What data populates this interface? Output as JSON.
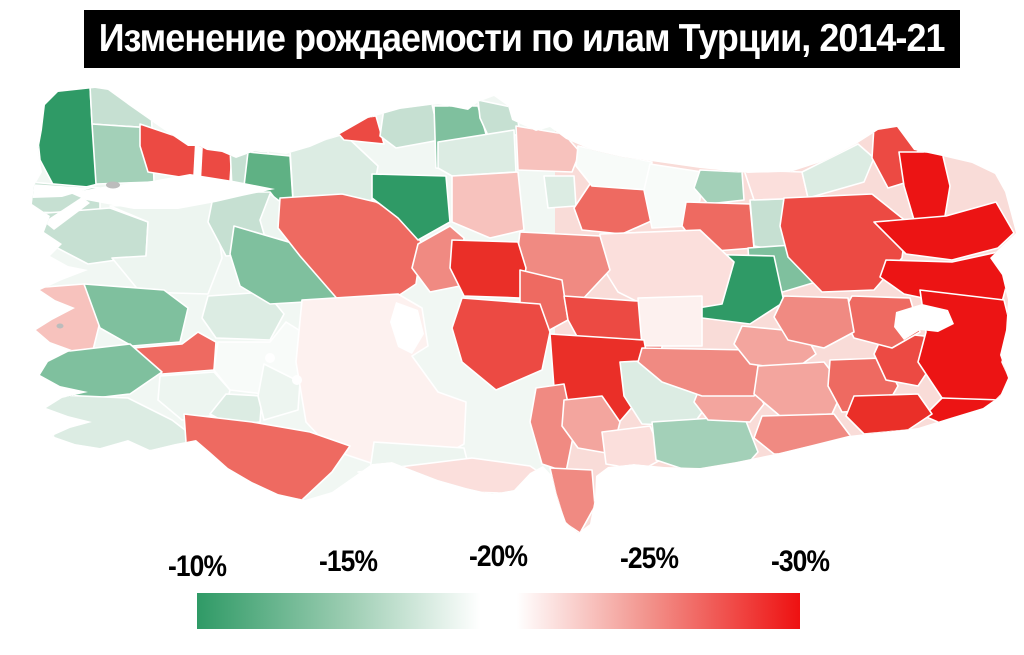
{
  "title": {
    "text": "Изменение рождаемости по илам Турции, 2014-21",
    "background": "#000000",
    "color": "#ffffff"
  },
  "legend": {
    "labels": [
      "-10%",
      "-15%",
      "-20%",
      "-25%",
      "-30%"
    ],
    "gradient_start_color": "#2f9a66",
    "gradient_mid_color": "#ffffff",
    "gradient_end_color": "#ee1111",
    "scale_min_pct": -10,
    "scale_mid_pct": -20,
    "scale_max_pct": -30
  },
  "map": {
    "type": "choropleth",
    "country": "Turkey",
    "metric": "birth-rate change 2014-21, %",
    "sea_color": "#ffffff",
    "border_color": "#ffffff",
    "island_color": "#bcbcbc",
    "regions": [
      {
        "id": "edirne",
        "fill": "#2f9a66",
        "value_pct": -10
      },
      {
        "id": "kirklareli",
        "fill": "#c6e0d2",
        "value_pct": -15.5
      },
      {
        "id": "tekirdag",
        "fill": "#a3d0b8",
        "value_pct": -14
      },
      {
        "id": "istanbul-west",
        "fill": "#ec4a43",
        "value_pct": -27.5
      },
      {
        "id": "istanbul-east",
        "fill": "#ec4a43",
        "value_pct": -27.5
      },
      {
        "id": "gelibolu",
        "fill": "#c6e0d2",
        "value_pct": -15.5
      },
      {
        "id": "canakkale",
        "fill": "#c6e0d2",
        "value_pct": -15.5
      },
      {
        "id": "kocaeli",
        "fill": "#c6e0d2",
        "value_pct": -15.5
      },
      {
        "id": "sakarya",
        "fill": "#5fb184",
        "value_pct": -11.5
      },
      {
        "id": "bolu",
        "fill": "#dcece3",
        "value_pct": -17
      },
      {
        "id": "balikesir",
        "fill": "#edf5f0",
        "value_pct": -18.5
      },
      {
        "id": "bursa",
        "fill": "#c6e0d2",
        "value_pct": -15.5
      },
      {
        "id": "bilecik",
        "fill": "#edf5f0",
        "value_pct": -18.5
      },
      {
        "id": "izmir",
        "fill": "#f7c2bd",
        "value_pct": -23
      },
      {
        "id": "manisa",
        "fill": "#7fc09e",
        "value_pct": -13
      },
      {
        "id": "kutahya",
        "fill": "#dcece3",
        "value_pct": -17
      },
      {
        "id": "eskisehir",
        "fill": "#7fc09e",
        "value_pct": -13
      },
      {
        "id": "usak",
        "fill": "#ee6a61",
        "value_pct": -26
      },
      {
        "id": "aydin",
        "fill": "#7fc09e",
        "value_pct": -13
      },
      {
        "id": "denizli",
        "fill": "#edf5f0",
        "value_pct": -18.5
      },
      {
        "id": "mugla",
        "fill": "#dcece3",
        "value_pct": -17
      },
      {
        "id": "afyon",
        "fill": "#f8fbf9",
        "value_pct": -19.5
      },
      {
        "id": "burdur",
        "fill": "#dcece3",
        "value_pct": -17
      },
      {
        "id": "isparta",
        "fill": "#edf5f0",
        "value_pct": -18.5
      },
      {
        "id": "ankara",
        "fill": "#ee6a61",
        "value_pct": -26
      },
      {
        "id": "cankiri",
        "fill": "#2f9a66",
        "value_pct": -10
      },
      {
        "id": "zonguldak",
        "fill": "#ec4a43",
        "value_pct": -27.5
      },
      {
        "id": "karabuk",
        "fill": "#c6e0d2",
        "value_pct": -15.5
      },
      {
        "id": "kastamonu",
        "fill": "#7fc09e",
        "value_pct": -13
      },
      {
        "id": "sinop",
        "fill": "#c6e0d2",
        "value_pct": -15.5
      },
      {
        "id": "bafra",
        "fill": "#dcece3",
        "value_pct": -17
      },
      {
        "id": "corum",
        "fill": "#f7c2bd",
        "value_pct": -23
      },
      {
        "id": "samsun",
        "fill": "#f7c2bd",
        "value_pct": -23
      },
      {
        "id": "amasya",
        "fill": "#dcece3",
        "value_pct": -17
      },
      {
        "id": "tokat",
        "fill": "#ee6a61",
        "value_pct": -26
      },
      {
        "id": "ordu-coast",
        "fill": "#f8fbf9",
        "value_pct": -19.5
      },
      {
        "id": "giresun-south",
        "fill": "#f8fbf9",
        "value_pct": -19.5
      },
      {
        "id": "giresun",
        "fill": "#a3d0b8",
        "value_pct": -14
      },
      {
        "id": "gumushane",
        "fill": "#ee6a61",
        "value_pct": -26
      },
      {
        "id": "bayburt",
        "fill": "#c6e0d2",
        "value_pct": -15.5
      },
      {
        "id": "trabzon",
        "fill": "#fbdfdc",
        "value_pct": -21.5
      },
      {
        "id": "rize",
        "fill": "#dcece3",
        "value_pct": -17
      },
      {
        "id": "artvin",
        "fill": "#ec4a43",
        "value_pct": -27.5
      },
      {
        "id": "erzincan",
        "fill": "#7fc09e",
        "value_pct": -13
      },
      {
        "id": "tunceli",
        "fill": "#2f9a66",
        "value_pct": -10
      },
      {
        "id": "sivas",
        "fill": "#fbdfdc",
        "value_pct": -21.5
      },
      {
        "id": "yozgat",
        "fill": "#f08a82",
        "value_pct": -25
      },
      {
        "id": "kirikkale",
        "fill": "#f08a82",
        "value_pct": -25
      },
      {
        "id": "kirsehir",
        "fill": "#ea2f28",
        "value_pct": -29
      },
      {
        "id": "nevsehir",
        "fill": "#ee6a61",
        "value_pct": -26
      },
      {
        "id": "aksaray",
        "fill": "#ec4a43",
        "value_pct": -27.5
      },
      {
        "id": "kayseri",
        "fill": "#ec4a43",
        "value_pct": -27.5
      },
      {
        "id": "elbistan",
        "fill": "#fdf1ef",
        "value_pct": -20.5
      },
      {
        "id": "nigde",
        "fill": "#ea2f28",
        "value_pct": -29
      },
      {
        "id": "konya",
        "fill": "#fdf1ef",
        "value_pct": -20.5
      },
      {
        "id": "karaman",
        "fill": "#edf5f0",
        "value_pct": -18.5
      },
      {
        "id": "mersin",
        "fill": "#fbdfdc",
        "value_pct": -21.5
      },
      {
        "id": "antalya",
        "fill": "#ee6a61",
        "value_pct": -26
      },
      {
        "id": "adana",
        "fill": "#f08a82",
        "value_pct": -25
      },
      {
        "id": "hatay",
        "fill": "#f08a82",
        "value_pct": -25
      },
      {
        "id": "osmaniye",
        "fill": "#f3a59e",
        "value_pct": -24
      },
      {
        "id": "kmaras",
        "fill": "#dcece3",
        "value_pct": -17
      },
      {
        "id": "gaziantep",
        "fill": "#fbdfdc",
        "value_pct": -21.5
      },
      {
        "id": "urfa",
        "fill": "#a3d0b8",
        "value_pct": -14
      },
      {
        "id": "adiyaman",
        "fill": "#f3a59e",
        "value_pct": -24
      },
      {
        "id": "malatya",
        "fill": "#f08a82",
        "value_pct": -25
      },
      {
        "id": "elazig",
        "fill": "#f3a59e",
        "value_pct": -24
      },
      {
        "id": "diyarbakir",
        "fill": "#f3a59e",
        "value_pct": -24
      },
      {
        "id": "batman",
        "fill": "#ee6a61",
        "value_pct": -26
      },
      {
        "id": "bitlis",
        "fill": "#ec4a43",
        "value_pct": -27.5
      },
      {
        "id": "mus",
        "fill": "#ee6a61",
        "value_pct": -26
      },
      {
        "id": "bingol",
        "fill": "#f08a82",
        "value_pct": -25
      },
      {
        "id": "erzurum",
        "fill": "#ec4a43",
        "value_pct": -27.5
      },
      {
        "id": "ardahan",
        "fill": "#ec1414",
        "value_pct": -30
      },
      {
        "id": "kars",
        "fill": "#ec1414",
        "value_pct": -30
      },
      {
        "id": "agri",
        "fill": "#ec1414",
        "value_pct": -30
      },
      {
        "id": "van",
        "fill": "#ec1414",
        "value_pct": -30
      },
      {
        "id": "hakkari",
        "fill": "#ec1414",
        "value_pct": -30
      },
      {
        "id": "sirnak",
        "fill": "#ea2f28",
        "value_pct": -29
      },
      {
        "id": "mardin",
        "fill": "#f08a82",
        "value_pct": -25
      }
    ]
  }
}
